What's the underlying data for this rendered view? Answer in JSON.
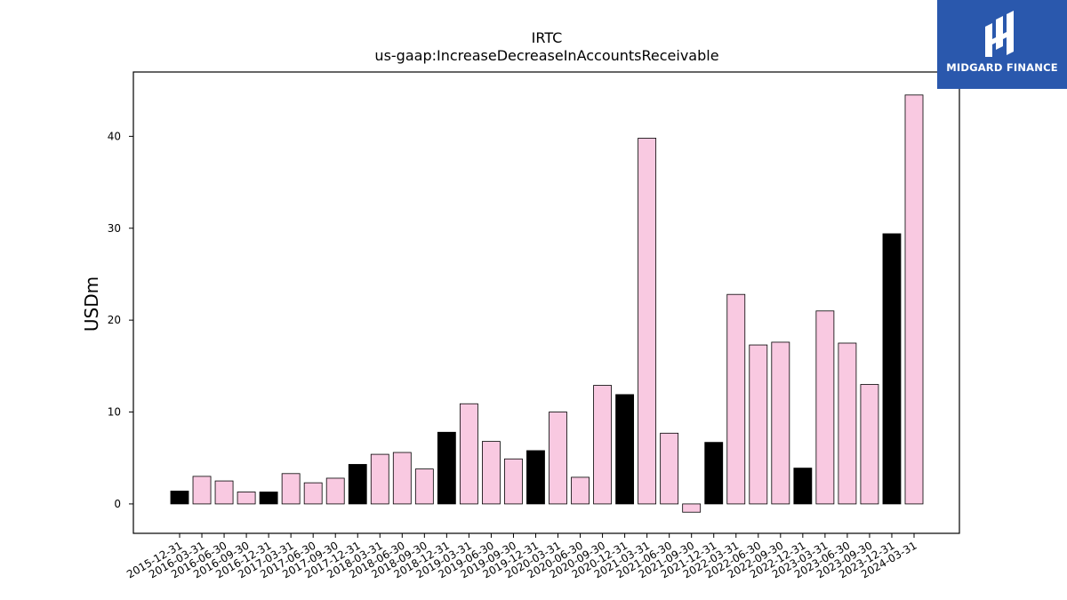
{
  "brand": {
    "name": "MIDGARD FINANCE",
    "logo_color": "#2a58ad"
  },
  "colors": {
    "bar_pink": "#f9c9e1",
    "bar_black": "#000000",
    "bar_edge": "#000000"
  },
  "chart_data": {
    "type": "bar",
    "title": "IRTC",
    "subtitle": "us-gaap:IncreaseDecreaseInAccountsReceivable",
    "xlabel": "",
    "ylabel": "USDm",
    "ylim": [
      -3.2,
      47
    ],
    "yticks": [
      0,
      10,
      20,
      30,
      40
    ],
    "grid": false,
    "legend": "none",
    "categories": [
      "2015-12-31",
      "2016-03-31",
      "2016-06-30",
      "2016-09-30",
      "2016-12-31",
      "2017-03-31",
      "2017-06-30",
      "2017-09-30",
      "2017-12-31",
      "2018-03-31",
      "2018-06-30",
      "2018-09-30",
      "2018-12-31",
      "2019-03-31",
      "2019-06-30",
      "2019-09-30",
      "2019-12-31",
      "2020-03-31",
      "2020-06-30",
      "2020-09-30",
      "2020-12-31",
      "2021-03-31",
      "2021-06-30",
      "2021-09-30",
      "2021-12-31",
      "2022-03-31",
      "2022-06-30",
      "2022-09-30",
      "2022-12-31",
      "2023-03-31",
      "2023-06-30",
      "2023-09-30",
      "2023-12-31",
      "2024-03-31"
    ],
    "values": [
      1.4,
      3.0,
      2.5,
      1.3,
      1.3,
      3.3,
      2.3,
      2.8,
      4.3,
      5.4,
      5.6,
      3.8,
      7.8,
      10.9,
      6.8,
      4.9,
      5.8,
      10.0,
      2.9,
      12.9,
      11.9,
      39.8,
      7.7,
      -0.9,
      6.7,
      22.8,
      17.3,
      17.6,
      3.9,
      21.0,
      17.5,
      13.0,
      29.4,
      44.5
    ],
    "highlight": [
      true,
      false,
      false,
      false,
      true,
      false,
      false,
      false,
      true,
      false,
      false,
      false,
      true,
      false,
      false,
      false,
      true,
      false,
      false,
      false,
      true,
      false,
      false,
      false,
      true,
      false,
      false,
      false,
      true,
      false,
      false,
      false,
      true,
      false
    ]
  }
}
